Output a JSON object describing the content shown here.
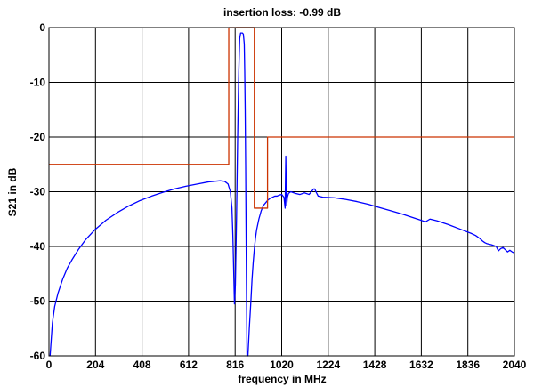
{
  "chart_data": {
    "type": "line",
    "title": "insertion loss: -0.99  dB",
    "xlabel": "frequency in MHz",
    "ylabel": "S21 in dB",
    "xlim": [
      0,
      2040
    ],
    "ylim": [
      -60,
      0
    ],
    "grid": true,
    "x_ticks": [
      0,
      204,
      408,
      612,
      816,
      1020,
      1224,
      1428,
      1632,
      1836,
      2040
    ],
    "y_ticks": [
      0,
      -10,
      -20,
      -30,
      -40,
      -50,
      -60
    ],
    "x_tick_labels": [
      "0",
      "204",
      "408",
      "612",
      "816",
      "1020",
      "1224",
      "1428",
      "1632",
      "1836",
      "2040"
    ],
    "y_tick_labels": [
      "0",
      "-10",
      "-20",
      "-30",
      "-40",
      "-50",
      "-60"
    ],
    "series": [
      {
        "color": "#0000ff",
        "x": [
          5,
          10,
          15,
          25,
          40,
          60,
          80,
          100,
          130,
          160,
          200,
          250,
          300,
          350,
          400,
          450,
          500,
          550,
          600,
          650,
          700,
          750,
          770,
          785,
          795,
          802,
          806,
          810,
          813,
          817,
          822,
          827,
          832,
          836,
          840,
          844,
          848,
          852,
          856,
          858,
          860,
          862,
          864,
          866,
          868,
          872,
          878,
          885,
          890,
          895,
          900,
          905,
          910,
          920,
          930,
          940,
          950,
          960,
          970,
          980,
          990,
          1000,
          1010,
          1020,
          1030,
          1035,
          1038,
          1040,
          1042,
          1045,
          1050,
          1060,
          1080,
          1100,
          1120,
          1140,
          1150,
          1160,
          1165,
          1170,
          1180,
          1200,
          1250,
          1300,
          1350,
          1400,
          1450,
          1500,
          1550,
          1600,
          1630,
          1650,
          1670,
          1700,
          1750,
          1800,
          1850,
          1870,
          1890,
          1900,
          1910,
          1920,
          1940,
          1960,
          1970,
          1980,
          1990,
          2000,
          2010,
          2020,
          2030,
          2040
        ],
        "y": [
          -60,
          -57,
          -54,
          -51,
          -48.5,
          -46,
          -44,
          -42.5,
          -40.5,
          -38.8,
          -37,
          -35.2,
          -33.8,
          -32.6,
          -31.6,
          -30.8,
          -30.1,
          -29.5,
          -29,
          -28.6,
          -28.2,
          -28,
          -28.1,
          -28.6,
          -30,
          -33,
          -38,
          -45,
          -50.5,
          -47,
          -35,
          -20,
          -8,
          -2,
          -1,
          -1,
          -1,
          -1.2,
          -3,
          -8,
          -15,
          -25,
          -38,
          -50,
          -60,
          -60,
          -55,
          -50,
          -46,
          -43,
          -40.5,
          -38.5,
          -37,
          -35,
          -33.5,
          -32.5,
          -32,
          -31.5,
          -31.2,
          -31,
          -30.8,
          -30.8,
          -30.6,
          -30.5,
          -31,
          -33,
          -23.5,
          -30,
          -32.5,
          -31,
          -30.3,
          -30,
          -30.3,
          -30.5,
          -30.2,
          -30.5,
          -30,
          -29.5,
          -29.5,
          -30,
          -30.8,
          -31,
          -31.1,
          -31.4,
          -31.8,
          -32.3,
          -32.9,
          -33.5,
          -34.1,
          -34.8,
          -35.2,
          -35.5,
          -35,
          -35.3,
          -36,
          -36.8,
          -37.6,
          -38,
          -38.6,
          -39,
          -39.3,
          -39.5,
          -39.7,
          -40,
          -40.8,
          -40.4,
          -40.2,
          -40.6,
          -41,
          -40.7,
          -41,
          -41.2
        ]
      },
      {
        "color": "#cc3300",
        "x": [
          0,
          788,
          788,
          900,
          900,
          958,
          958,
          2040
        ],
        "y": [
          -25,
          -25,
          0,
          0,
          -33,
          -33,
          -20,
          -20
        ]
      },
      {
        "color": "#cc3300",
        "x": [
          820,
          900
        ],
        "y": [
          0,
          0
        ]
      }
    ]
  }
}
